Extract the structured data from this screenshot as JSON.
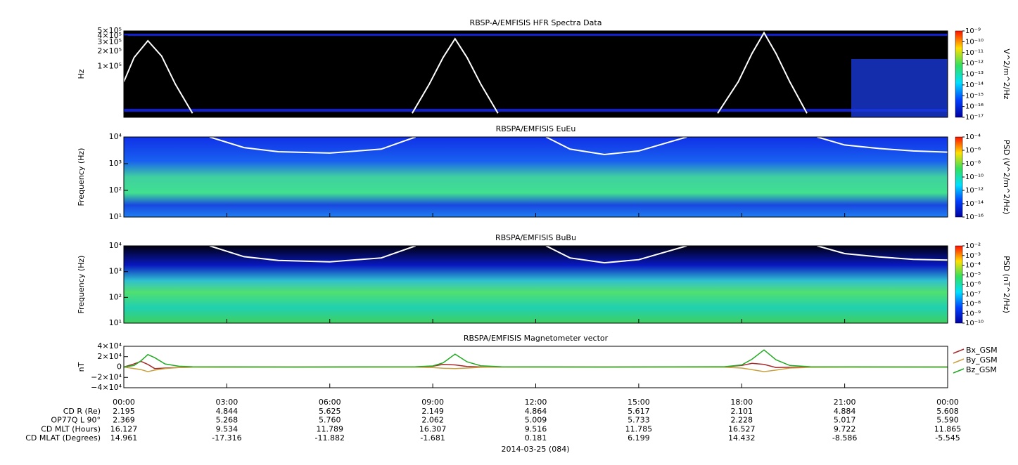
{
  "chart_data": [
    {
      "type": "spectrogram",
      "title": "RBSP-A/EMFISIS  HFR Spectra Data",
      "ylabel": "Hz",
      "ylog": true,
      "xlim": [
        0,
        24
      ],
      "ylim": [
        10000,
        500000
      ],
      "yticks": [
        {
          "value": 500000,
          "label": "5×10⁵"
        },
        {
          "value": 400000,
          "label": "4×10⁵"
        },
        {
          "value": 300000,
          "label": "3×10⁵"
        },
        {
          "value": 200000,
          "label": "2×10⁵"
        },
        {
          "value": 100000,
          "label": "1×10⁵"
        }
      ],
      "clim": [
        1e-17,
        1e-09
      ],
      "clabel": "V^2/m^2/Hz",
      "cticks": [
        {
          "value": 1e-17,
          "label": "10⁻¹⁷"
        },
        {
          "value": 1e-16,
          "label": "10⁻¹⁶"
        },
        {
          "value": 1e-15,
          "label": "10⁻¹⁵"
        },
        {
          "value": 1e-14,
          "label": "10⁻¹⁴"
        },
        {
          "value": 1e-13,
          "label": "10⁻¹³"
        },
        {
          "value": 1e-12,
          "label": "10⁻¹²"
        },
        {
          "value": 1e-11,
          "label": "10⁻¹¹"
        },
        {
          "value": 1e-10,
          "label": "10⁻¹⁰"
        },
        {
          "value": 1e-09,
          "label": "10⁻⁹"
        }
      ],
      "x": [
        0,
        0.3,
        0.7,
        1.1,
        1.5,
        2.0,
        5,
        8.4,
        8.9,
        9.3,
        9.65,
        10.0,
        10.4,
        10.9,
        14,
        17.3,
        17.9,
        18.3,
        18.65,
        19.0,
        19.4,
        19.9
      ],
      "series": [
        {
          "color": "#ffffff",
          "values": [
            50000,
            150000,
            320000,
            160000,
            45000,
            12000,
            null,
            12000,
            45000,
            150000,
            350000,
            150000,
            45000,
            12000,
            null,
            12000,
            50000,
            180000,
            460000,
            180000,
            50000,
            12000
          ]
        }
      ]
    },
    {
      "type": "spectrogram",
      "title": "RBSPA/EMFISIS  EuEu",
      "ylabel": "Frequency (Hz)",
      "ylog": true,
      "xlim": [
        0,
        24
      ],
      "ylim": [
        10,
        10000
      ],
      "yticks": [
        {
          "value": 10,
          "label": "10¹"
        },
        {
          "value": 100,
          "label": "10²"
        },
        {
          "value": 1000,
          "label": "10³"
        },
        {
          "value": 10000,
          "label": "10⁴"
        }
      ],
      "clim": [
        1e-16,
        0.0001
      ],
      "clabel": "PSD (V^2/m^2/Hz)",
      "cticks": [
        {
          "value": 1e-16,
          "label": "10⁻¹⁶"
        },
        {
          "value": 1e-14,
          "label": "10⁻¹⁴"
        },
        {
          "value": 1e-12,
          "label": "10⁻¹²"
        },
        {
          "value": 1e-10,
          "label": "10⁻¹⁰"
        },
        {
          "value": 1e-08,
          "label": "10⁻⁸"
        },
        {
          "value": 1e-06,
          "label": "10⁻⁶"
        },
        {
          "value": 0.0001,
          "label": "10⁻⁴"
        }
      ],
      "x": [
        2.5,
        3.5,
        4.5,
        6,
        7.5,
        8.5,
        10,
        12.3,
        13,
        14,
        15,
        16.4,
        18,
        20.2,
        21,
        22,
        23,
        24
      ],
      "series": [
        {
          "color": "#ffffff",
          "values": [
            10000,
            4000,
            2800,
            2500,
            3500,
            10000,
            null,
            10000,
            3500,
            2200,
            3000,
            10000,
            null,
            10000,
            5000,
            3700,
            3000,
            2700
          ]
        }
      ]
    },
    {
      "type": "spectrogram",
      "title": "RBSPA/EMFISIS  BuBu",
      "ylabel": "Frequency (Hz)",
      "ylog": true,
      "xlim": [
        0,
        24
      ],
      "ylim": [
        10,
        10000
      ],
      "yticks": [
        {
          "value": 10,
          "label": "10¹"
        },
        {
          "value": 100,
          "label": "10²"
        },
        {
          "value": 1000,
          "label": "10³"
        },
        {
          "value": 10000,
          "label": "10⁴"
        }
      ],
      "clim": [
        1e-10,
        0.01
      ],
      "clabel": "PSD (nT^2/Hz)",
      "cticks": [
        {
          "value": 1e-10,
          "label": "10⁻¹⁰"
        },
        {
          "value": 1e-09,
          "label": "10⁻⁹"
        },
        {
          "value": 1e-08,
          "label": "10⁻⁸"
        },
        {
          "value": 1e-07,
          "label": "10⁻⁷"
        },
        {
          "value": 1e-06,
          "label": "10⁻⁶"
        },
        {
          "value": 1e-05,
          "label": "10⁻⁵"
        },
        {
          "value": 0.0001,
          "label": "10⁻⁴"
        },
        {
          "value": 0.001,
          "label": "10⁻³"
        },
        {
          "value": 0.01,
          "label": "10⁻²"
        }
      ],
      "x": [
        2.5,
        3.5,
        4.5,
        6,
        7.5,
        8.5,
        10,
        12.3,
        13,
        14,
        15,
        16.4,
        18,
        20.2,
        21,
        22,
        23,
        24
      ],
      "series": [
        {
          "color": "#ffffff",
          "values": [
            10000,
            3800,
            2700,
            2400,
            3400,
            10000,
            null,
            10000,
            3400,
            2200,
            2900,
            10000,
            null,
            10000,
            5000,
            3700,
            3000,
            2800
          ]
        }
      ]
    },
    {
      "type": "line",
      "title": "RBSPA/EMFISIS  Magnetometer vector",
      "ylabel": "nT",
      "ylog": false,
      "xlim": [
        0,
        24
      ],
      "ylim": [
        -40000,
        40000
      ],
      "yticks": [
        {
          "value": -40000,
          "label": "−4×10⁴"
        },
        {
          "value": -20000,
          "label": "−2×10⁴"
        },
        0,
        {
          "value": 20000,
          "label": "2×10⁴"
        },
        {
          "value": 40000,
          "label": "4×10⁴"
        }
      ],
      "xticks": [
        {
          "value": 0,
          "label": "00:00"
        },
        {
          "value": 3,
          "label": "03:00"
        },
        {
          "value": 6,
          "label": "06:00"
        },
        {
          "value": 9,
          "label": "09:00"
        },
        {
          "value": 12,
          "label": "12:00"
        },
        {
          "value": 15,
          "label": "15:00"
        },
        {
          "value": 18,
          "label": "18:00"
        },
        {
          "value": 21,
          "label": "21:00"
        },
        {
          "value": 24,
          "label": "00:00"
        }
      ],
      "x": [
        0,
        0.3,
        0.5,
        0.7,
        0.9,
        1.2,
        1.6,
        2,
        5,
        8.5,
        9.0,
        9.3,
        9.65,
        10.0,
        10.4,
        11,
        14,
        17.5,
        18.0,
        18.3,
        18.65,
        19.0,
        19.4,
        20,
        24
      ],
      "series": [
        {
          "name": "Bx_GSM",
          "color": "#a52a2a",
          "values": [
            0,
            6000,
            11000,
            5000,
            -3000,
            -2000,
            -800,
            -300,
            0,
            200,
            1500,
            5000,
            4000,
            1000,
            200,
            0,
            0,
            300,
            3000,
            7000,
            5000,
            -1000,
            -500,
            -200,
            0
          ]
        },
        {
          "name": "By_GSM",
          "color": "#c8a040",
          "values": [
            0,
            -3000,
            -5000,
            -9000,
            -6000,
            -3000,
            -1000,
            -300,
            0,
            -200,
            -1000,
            -2500,
            -3000,
            -2000,
            -500,
            0,
            0,
            -300,
            -2000,
            -5000,
            -9000,
            -6000,
            -2000,
            -500,
            0
          ]
        },
        {
          "name": "Bz_GSM",
          "color": "#22aa22",
          "values": [
            0,
            3000,
            12000,
            24000,
            18000,
            6000,
            1500,
            500,
            0,
            500,
            2000,
            8000,
            25000,
            10000,
            2500,
            500,
            0,
            500,
            4000,
            15000,
            33000,
            14000,
            3000,
            500,
            0
          ]
        }
      ]
    }
  ],
  "ephemeris": {
    "labels": [
      "CD R (Re)",
      "OP77Q L 90°",
      "CD MLT (Hours)",
      "CD MLAT (Degrees)"
    ],
    "rows": [
      [
        "2.195",
        "4.844",
        "5.625",
        "2.149",
        "4.864",
        "5.617",
        "2.101",
        "4.884",
        "5.608"
      ],
      [
        "2.369",
        "5.268",
        "5.760",
        "2.062",
        "5.009",
        "5.733",
        "2.228",
        "5.017",
        "5.590"
      ],
      [
        "16.127",
        "9.534",
        "11.789",
        "16.307",
        "9.516",
        "11.785",
        "16.527",
        "9.722",
        "11.865"
      ],
      [
        "14.961",
        "-17.316",
        "-11.882",
        "-1.681",
        "0.181",
        "6.199",
        "14.432",
        "-8.586",
        "-5.545"
      ]
    ],
    "date": "2014-03-25 (084)"
  }
}
